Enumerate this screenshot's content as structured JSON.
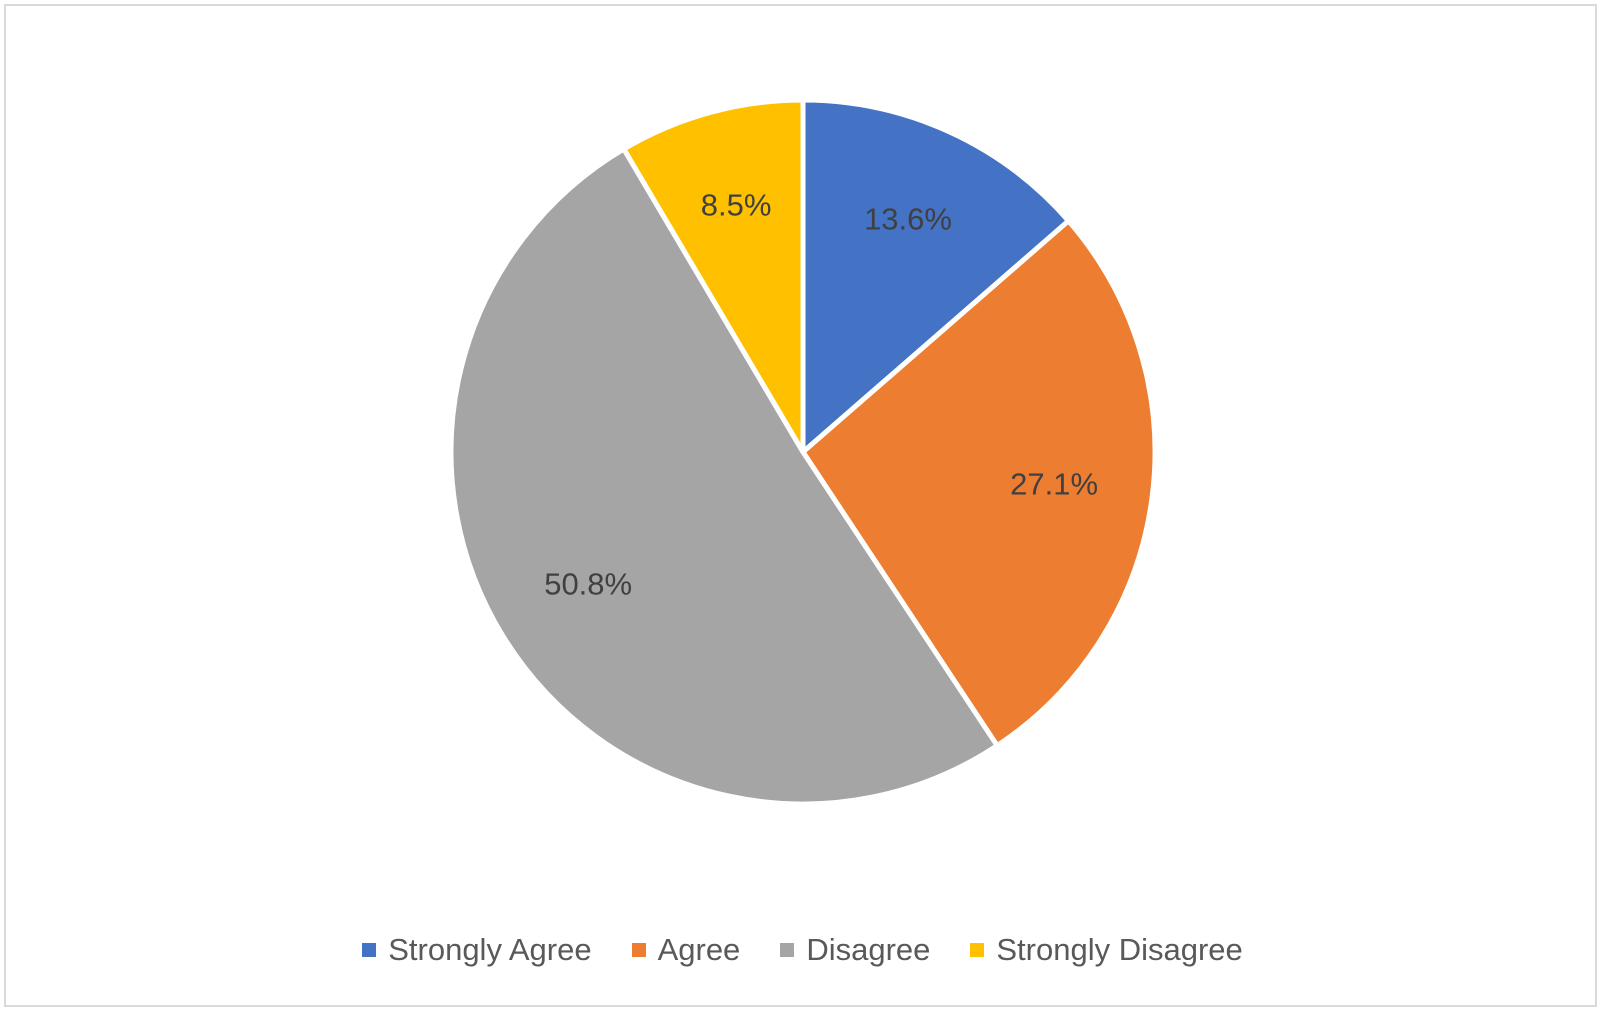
{
  "chart_data": {
    "type": "pie",
    "categories": [
      "Strongly Agree",
      "Agree",
      "Disagree",
      "Strongly Disagree"
    ],
    "values": [
      13.6,
      27.1,
      50.8,
      8.5
    ],
    "labels": [
      "13.6%",
      "27.1%",
      "50.8%",
      "8.5%"
    ],
    "colors": [
      "#4472C4",
      "#ED7D31",
      "#A5A5A5",
      "#FFC000"
    ],
    "legend_position": "bottom"
  }
}
